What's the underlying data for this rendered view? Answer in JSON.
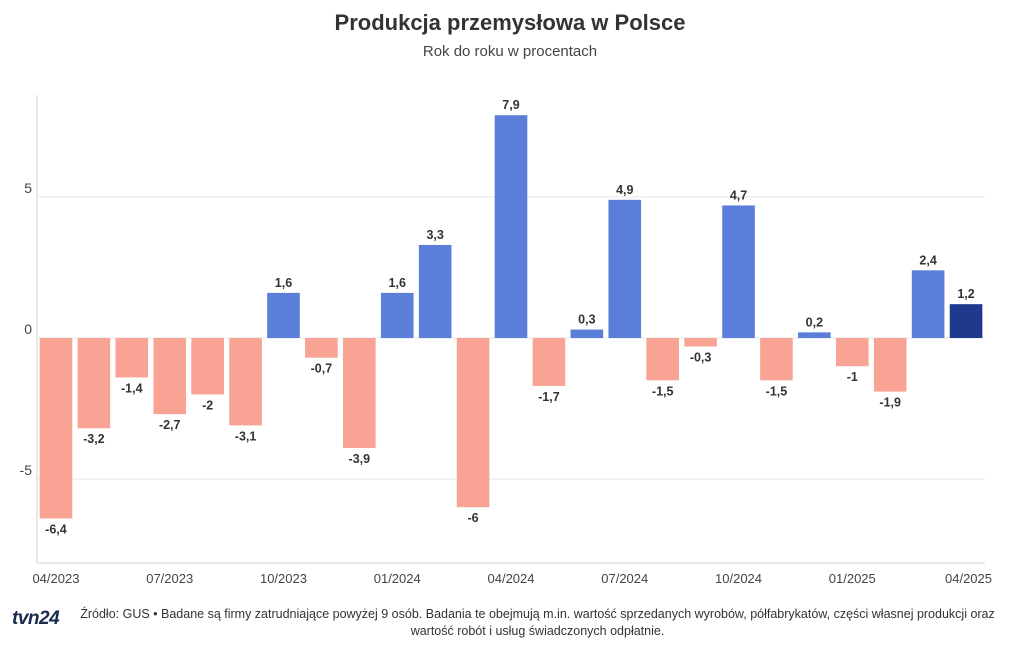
{
  "header": {
    "title": "Produkcja przemysłowa w Polsce",
    "subtitle": "Rok do roku w procentach"
  },
  "footer": {
    "logo": "tvn24",
    "source": "Źródło: GUS • Badane są firmy zatrudniające powyżej 9 osób. Badania te obejmują m.in. wartość sprzedanych wyrobów, półfabrykatów, części własnej produkcji oraz wartość robót i usług świadczonych odpłatnie."
  },
  "colors": {
    "positive": "#5b7fd8",
    "negative": "#f8a394",
    "latest": "#1f3a8c",
    "grid": "#e6e6e6"
  },
  "chart_data": {
    "type": "bar",
    "title": "Produkcja przemysłowa w Polsce",
    "subtitle": "Rok do roku w procentach",
    "xlabel": "",
    "ylabel": "",
    "ylim": [
      -8,
      8.5
    ],
    "yticks": [
      5,
      0,
      -5
    ],
    "ytick_labels": [
      "5",
      "0",
      "-5"
    ],
    "categories": [
      "04/2023",
      "05/2023",
      "06/2023",
      "07/2023",
      "08/2023",
      "09/2023",
      "10/2023",
      "11/2023",
      "12/2023",
      "01/2024",
      "02/2024",
      "03/2024",
      "04/2024",
      "05/2024",
      "06/2024",
      "07/2024",
      "08/2024",
      "09/2024",
      "10/2024",
      "11/2024",
      "12/2024",
      "01/2025",
      "02/2025",
      "03/2025",
      "04/2025"
    ],
    "values": [
      -6.4,
      -3.2,
      -1.4,
      -2.7,
      -2,
      -3.1,
      1.6,
      -0.7,
      -3.9,
      1.6,
      3.3,
      -6,
      7.9,
      -1.7,
      0.3,
      4.9,
      -1.5,
      -0.3,
      4.7,
      -1.5,
      0.2,
      -1,
      -1.9,
      2.4,
      1.2
    ],
    "value_labels": [
      "-6,4",
      "-3,2",
      "-1,4",
      "-2,7",
      "-2",
      "-3,1",
      "1,6",
      "-0,7",
      "-3,9",
      "1,6",
      "3,3",
      "-6",
      "7,9",
      "-1,7",
      "0,3",
      "4,9",
      "-1,5",
      "-0,3",
      "4,7",
      "-1,5",
      "0,2",
      "-1",
      "-1,9",
      "2,4",
      "1,2"
    ],
    "xtick_labels": [
      "04/2023",
      "07/2023",
      "10/2023",
      "01/2024",
      "04/2024",
      "07/2024",
      "10/2024",
      "01/2025",
      "04/2025"
    ],
    "xtick_indices": [
      0,
      3,
      6,
      9,
      12,
      15,
      18,
      21,
      24
    ],
    "highlight_index": 24
  }
}
